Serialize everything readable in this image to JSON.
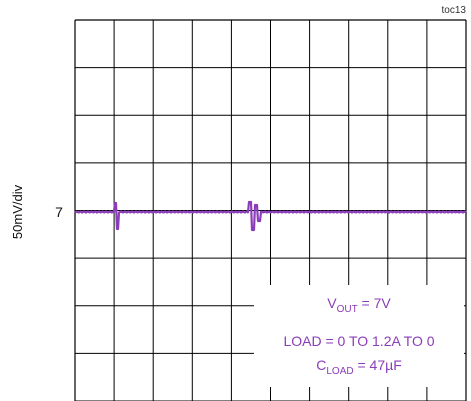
{
  "figure_id": "toc13",
  "chart_data": {
    "type": "line",
    "ylabel": "50mV/div",
    "y_marker": "7",
    "series": [
      {
        "name": "",
        "baseline": 7,
        "color": "#8a3db8"
      }
    ],
    "grid": true,
    "grid_divisions": {
      "x": 10,
      "y": 8
    },
    "transients": [
      {
        "x_div": 1.05
      },
      {
        "x_div": 4.55
      }
    ],
    "annotation": {
      "vout_prefix": "V",
      "vout_sub": "OUT",
      "vout_value": " = 7V",
      "load_text": "LOAD = 0 TO 1.2A TO 0",
      "cload_prefix": "C",
      "cload_sub": "LOAD",
      "cload_value": " = 47µF",
      "color": "#8a3db8"
    }
  }
}
